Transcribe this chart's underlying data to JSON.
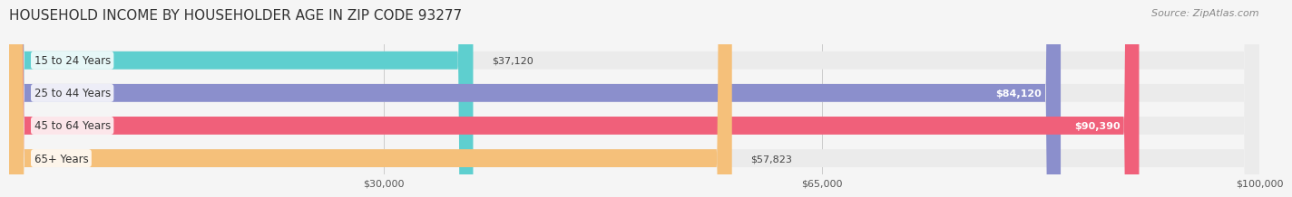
{
  "title": "HOUSEHOLD INCOME BY HOUSEHOLDER AGE IN ZIP CODE 93277",
  "source": "Source: ZipAtlas.com",
  "categories": [
    "15 to 24 Years",
    "25 to 44 Years",
    "45 to 64 Years",
    "65+ Years"
  ],
  "values": [
    37120,
    84120,
    90390,
    57823
  ],
  "bar_colors": [
    "#5ecfcf",
    "#8b8fcc",
    "#f0607a",
    "#f5c07a"
  ],
  "track_color": "#ebebeb",
  "label_bg_color": "#ffffff",
  "xmax": 100000,
  "xticks": [
    30000,
    65000,
    100000
  ],
  "xtick_labels": [
    "$30,000",
    "$65,000",
    "$100,000"
  ],
  "value_labels": [
    "$37,120",
    "$84,120",
    "$90,390",
    "$57,823"
  ],
  "title_fontsize": 11,
  "source_fontsize": 8,
  "bar_height": 0.55,
  "background_color": "#f5f5f5",
  "title_color": "#333333",
  "source_color": "#888888",
  "label_fontsize": 8.5,
  "value_fontsize": 8,
  "tick_fontsize": 8
}
